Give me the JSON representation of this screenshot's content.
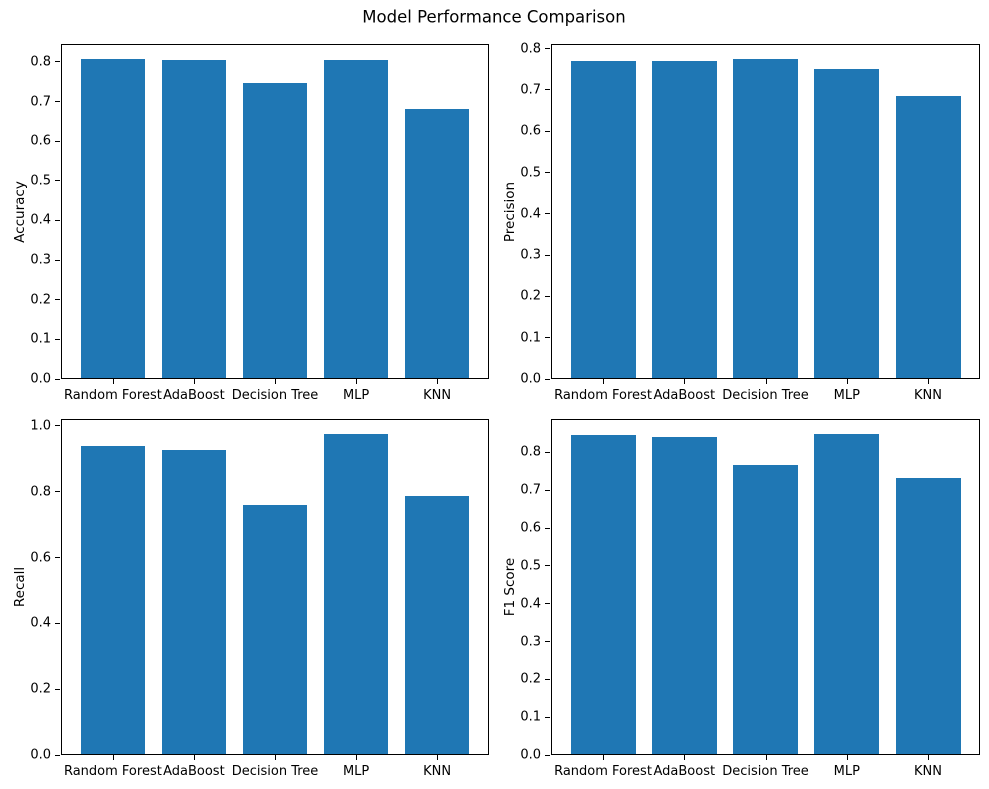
{
  "figure": {
    "title": "Model Performance Comparison",
    "background": "#ffffff",
    "bar_color": "#1f77b4"
  },
  "chart_data": [
    {
      "type": "bar",
      "ylabel": "Accuracy",
      "categories": [
        "Random Forest",
        "AdaBoost",
        "Decision Tree",
        "MLP",
        "KNN"
      ],
      "values": [
        0.805,
        0.803,
        0.744,
        0.803,
        0.678
      ],
      "ylim": [
        0,
        0.845
      ],
      "yticks": [
        0.0,
        0.1,
        0.2,
        0.3,
        0.4,
        0.5,
        0.6,
        0.7,
        0.8
      ],
      "grid": false,
      "legend": null
    },
    {
      "type": "bar",
      "ylabel": "Precision",
      "categories": [
        "Random Forest",
        "AdaBoost",
        "Decision Tree",
        "MLP",
        "KNN"
      ],
      "values": [
        0.768,
        0.768,
        0.772,
        0.749,
        0.683
      ],
      "ylim": [
        0,
        0.811
      ],
      "yticks": [
        0.0,
        0.1,
        0.2,
        0.3,
        0.4,
        0.5,
        0.6,
        0.7,
        0.8
      ],
      "grid": false,
      "legend": null
    },
    {
      "type": "bar",
      "ylabel": "Recall",
      "categories": [
        "Random Forest",
        "AdaBoost",
        "Decision Tree",
        "MLP",
        "KNN"
      ],
      "values": [
        0.935,
        0.925,
        0.757,
        0.972,
        0.785
      ],
      "ylim": [
        0,
        1.021
      ],
      "yticks": [
        0.0,
        0.2,
        0.4,
        0.6,
        0.8,
        1.0
      ],
      "grid": false,
      "legend": null
    },
    {
      "type": "bar",
      "ylabel": "F1 Score",
      "categories": [
        "Random Forest",
        "AdaBoost",
        "Decision Tree",
        "MLP",
        "KNN"
      ],
      "values": [
        0.843,
        0.839,
        0.764,
        0.846,
        0.73
      ],
      "ylim": [
        0,
        0.888
      ],
      "yticks": [
        0.0,
        0.1,
        0.2,
        0.3,
        0.4,
        0.5,
        0.6,
        0.7,
        0.8
      ],
      "grid": false,
      "legend": null
    }
  ]
}
